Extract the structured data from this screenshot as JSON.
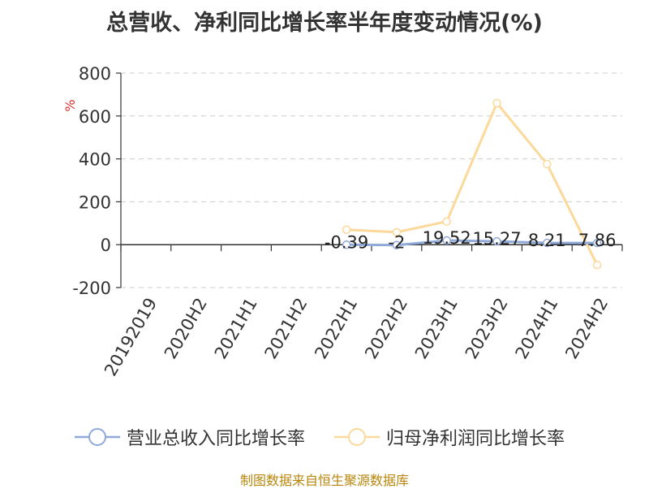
{
  "title": "总营收、净利同比增长率半年度变动情况(%)",
  "footer": "制图数据来自恒生聚源数据库",
  "legend": [
    {
      "name": "营业总收入同比增长率",
      "color": "#8fa9d8"
    },
    {
      "name": "归母净利润同比增长率",
      "color": "#fcd99a"
    }
  ],
  "chart_data": {
    "type": "line",
    "ylabel": "%",
    "ylim": [
      -200,
      800
    ],
    "yticks": [
      800,
      600,
      400,
      200,
      0,
      -200
    ],
    "grid": true,
    "legend_position": "bottom",
    "categories": [
      "20192019",
      "2020H2",
      "2021H1",
      "2021H2",
      "2022H1",
      "2022H2",
      "2023H1",
      "2023H2",
      "2024H1",
      "2024H2"
    ],
    "series": [
      {
        "name": "营业总收入同比增长率",
        "color": "#8fa9d8",
        "values": [
          null,
          null,
          null,
          null,
          -0.39,
          -2,
          19.52,
          15.27,
          8.21,
          7.86
        ],
        "labels": [
          "",
          "",
          "",
          "",
          "-0.39",
          "-2",
          "19.52",
          "15.27",
          "8.21",
          "7.86"
        ]
      },
      {
        "name": "归母净利润同比增长率",
        "color": "#fcd99a",
        "values": [
          null,
          null,
          null,
          null,
          70,
          58,
          108,
          660,
          376,
          -95
        ],
        "labels": []
      }
    ]
  }
}
